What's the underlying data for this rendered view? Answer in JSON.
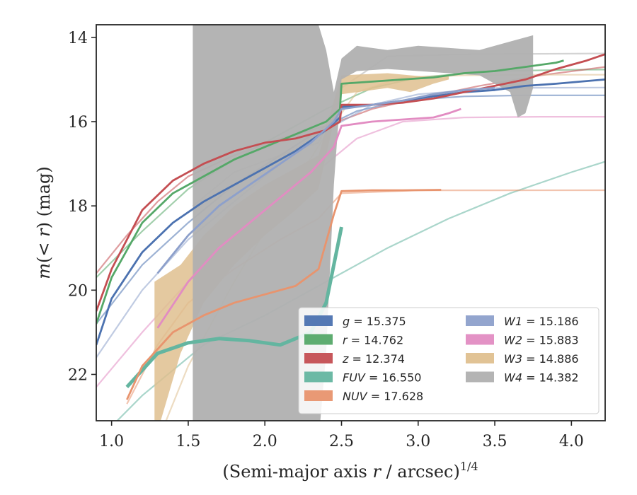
{
  "chart_data": {
    "type": "line",
    "xlabel_parts": [
      "(Semi-major axis ",
      "r",
      " / arcsec)",
      "1/4"
    ],
    "ylabel_parts": [
      "m",
      "(< ",
      "r",
      ") (mag)"
    ],
    "xlim": [
      0.9,
      4.22
    ],
    "ylim": [
      23.1,
      13.7
    ],
    "y_inverted": true,
    "xticks": [
      1.0,
      1.5,
      2.0,
      2.5,
      3.0,
      3.5,
      4.0
    ],
    "xtick_labels": [
      "1.0",
      "1.5",
      "2.0",
      "2.5",
      "3.0",
      "3.5",
      "4.0"
    ],
    "yticks": [
      14,
      16,
      18,
      20,
      22
    ],
    "ytick_labels": [
      "14",
      "16",
      "18",
      "20",
      "22"
    ],
    "grid": false,
    "legend_position": "lower-right",
    "series": [
      {
        "band": "g",
        "value": "15.375",
        "color": "#4c72b0",
        "points": [
          [
            0.9,
            21.3
          ],
          [
            1.0,
            20.2
          ],
          [
            1.2,
            19.1
          ],
          [
            1.4,
            18.4
          ],
          [
            1.6,
            17.9
          ],
          [
            1.8,
            17.5
          ],
          [
            2.0,
            17.1
          ],
          [
            2.2,
            16.7
          ],
          [
            2.4,
            16.2
          ],
          [
            2.49,
            15.9
          ],
          [
            2.5,
            15.65
          ],
          [
            2.7,
            15.6
          ],
          [
            2.9,
            15.5
          ],
          [
            3.1,
            15.4
          ],
          [
            3.3,
            15.3
          ],
          [
            3.5,
            15.25
          ],
          [
            3.7,
            15.15
          ],
          [
            3.9,
            15.1
          ],
          [
            4.22,
            15.0
          ]
        ],
        "extrapolation": [
          [
            0.9,
            20.8
          ],
          [
            1.2,
            19.4
          ],
          [
            1.5,
            18.4
          ],
          [
            1.8,
            17.5
          ],
          [
            2.1,
            16.8
          ],
          [
            2.4,
            16.1
          ],
          [
            2.6,
            15.75
          ],
          [
            2.9,
            15.5
          ],
          [
            3.3,
            15.4
          ],
          [
            3.7,
            15.375
          ],
          [
            4.22,
            15.375
          ]
        ]
      },
      {
        "band": "r",
        "value": "14.762",
        "color": "#55a868",
        "points": [
          [
            0.9,
            20.8
          ],
          [
            1.0,
            19.7
          ],
          [
            1.2,
            18.4
          ],
          [
            1.4,
            17.7
          ],
          [
            1.6,
            17.3
          ],
          [
            1.8,
            16.9
          ],
          [
            2.0,
            16.6
          ],
          [
            2.2,
            16.3
          ],
          [
            2.4,
            16.0
          ],
          [
            2.49,
            15.7
          ],
          [
            2.5,
            15.1
          ],
          [
            2.7,
            15.05
          ],
          [
            2.9,
            15.0
          ],
          [
            3.1,
            14.95
          ],
          [
            3.3,
            14.85
          ],
          [
            3.5,
            14.8
          ],
          [
            3.7,
            14.7
          ],
          [
            3.9,
            14.6
          ],
          [
            3.95,
            14.55
          ]
        ],
        "extrapolation": [
          [
            0.9,
            19.7
          ],
          [
            1.2,
            18.6
          ],
          [
            1.5,
            17.6
          ],
          [
            1.8,
            16.9
          ],
          [
            2.1,
            16.3
          ],
          [
            2.4,
            15.7
          ],
          [
            2.7,
            15.2
          ],
          [
            3.0,
            14.95
          ],
          [
            3.5,
            14.8
          ],
          [
            4.0,
            14.77
          ],
          [
            4.22,
            14.765
          ]
        ]
      },
      {
        "band": "z",
        "value": "12.374",
        "color": "#c44e52",
        "points": [
          [
            0.9,
            20.5
          ],
          [
            1.0,
            19.5
          ],
          [
            1.2,
            18.1
          ],
          [
            1.4,
            17.4
          ],
          [
            1.6,
            17.0
          ],
          [
            1.8,
            16.7
          ],
          [
            2.0,
            16.5
          ],
          [
            2.2,
            16.4
          ],
          [
            2.4,
            16.2
          ],
          [
            2.49,
            16.0
          ],
          [
            2.5,
            15.6
          ],
          [
            2.7,
            15.6
          ],
          [
            2.9,
            15.55
          ],
          [
            3.1,
            15.45
          ],
          [
            3.3,
            15.3
          ],
          [
            3.5,
            15.15
          ],
          [
            3.7,
            15.0
          ],
          [
            3.9,
            14.75
          ],
          [
            4.1,
            14.55
          ],
          [
            4.22,
            14.4
          ]
        ],
        "extrapolation": [
          [
            0.9,
            19.6
          ],
          [
            1.1,
            18.7
          ],
          [
            1.3,
            17.9
          ],
          [
            1.5,
            17.3
          ],
          [
            1.8,
            16.8
          ],
          [
            2.1,
            16.4
          ],
          [
            2.4,
            16.1
          ],
          [
            2.7,
            15.7
          ],
          [
            3.0,
            15.45
          ],
          [
            3.4,
            15.15
          ],
          [
            3.8,
            14.9
          ],
          [
            4.22,
            14.7
          ]
        ]
      },
      {
        "band": "FUV",
        "value": "16.550",
        "color": "#64b5a0",
        "points": [
          [
            1.1,
            22.3
          ],
          [
            1.3,
            21.5
          ],
          [
            1.5,
            21.25
          ],
          [
            1.7,
            21.15
          ],
          [
            1.9,
            21.2
          ],
          [
            2.1,
            21.3
          ],
          [
            2.3,
            21.0
          ],
          [
            2.4,
            20.3
          ],
          [
            2.5,
            18.5
          ]
        ],
        "extrapolation": [
          [
            0.9,
            23.6
          ],
          [
            1.2,
            22.5
          ],
          [
            1.6,
            21.3
          ],
          [
            2.0,
            20.6
          ],
          [
            2.4,
            19.8
          ],
          [
            2.8,
            19.0
          ],
          [
            3.2,
            18.3
          ],
          [
            3.6,
            17.7
          ],
          [
            4.0,
            17.2
          ],
          [
            4.22,
            16.95
          ]
        ]
      },
      {
        "band": "NUV",
        "value": "17.628",
        "color": "#e8946e",
        "points": [
          [
            1.1,
            22.6
          ],
          [
            1.2,
            21.8
          ],
          [
            1.4,
            21.0
          ],
          [
            1.6,
            20.6
          ],
          [
            1.8,
            20.3
          ],
          [
            2.0,
            20.1
          ],
          [
            2.2,
            19.9
          ],
          [
            2.35,
            19.5
          ],
          [
            2.45,
            18.2
          ],
          [
            2.5,
            17.65
          ],
          [
            2.7,
            17.63
          ],
          [
            2.9,
            17.63
          ],
          [
            3.15,
            17.62
          ]
        ],
        "extrapolation": [
          [
            1.1,
            22.7
          ],
          [
            1.3,
            21.3
          ],
          [
            1.5,
            20.3
          ],
          [
            1.8,
            19.5
          ],
          [
            2.1,
            18.8
          ],
          [
            2.35,
            18.3
          ],
          [
            2.5,
            17.7
          ],
          [
            3.0,
            17.63
          ],
          [
            3.5,
            17.63
          ],
          [
            4.22,
            17.628
          ]
        ]
      },
      {
        "band": "W1",
        "value": "15.186",
        "color": "#8da0cb",
        "points": [
          [
            1.3,
            19.6
          ],
          [
            1.5,
            18.7
          ],
          [
            1.7,
            18.0
          ],
          [
            1.9,
            17.5
          ],
          [
            2.1,
            17.0
          ],
          [
            2.3,
            16.5
          ],
          [
            2.45,
            16.0
          ],
          [
            2.5,
            15.7
          ],
          [
            2.7,
            15.6
          ],
          [
            2.9,
            15.5
          ],
          [
            3.1,
            15.35
          ],
          [
            3.3,
            15.25
          ],
          [
            3.5,
            15.2
          ]
        ],
        "extrapolation": [
          [
            0.9,
            21.6
          ],
          [
            1.2,
            20.0
          ],
          [
            1.5,
            18.8
          ],
          [
            1.8,
            17.9
          ],
          [
            2.1,
            17.0
          ],
          [
            2.4,
            16.2
          ],
          [
            2.7,
            15.6
          ],
          [
            3.0,
            15.35
          ],
          [
            3.5,
            15.2
          ],
          [
            4.22,
            15.19
          ]
        ]
      },
      {
        "band": "W2",
        "value": "15.883",
        "color": "#e28cc2",
        "points": [
          [
            1.3,
            20.9
          ],
          [
            1.5,
            19.8
          ],
          [
            1.7,
            19.0
          ],
          [
            1.9,
            18.4
          ],
          [
            2.1,
            17.8
          ],
          [
            2.3,
            17.2
          ],
          [
            2.45,
            16.6
          ],
          [
            2.5,
            16.1
          ],
          [
            2.7,
            16.0
          ],
          [
            2.9,
            15.95
          ],
          [
            3.1,
            15.9
          ],
          [
            3.2,
            15.8
          ],
          [
            3.28,
            15.7
          ]
        ],
        "extrapolation": [
          [
            0.9,
            22.3
          ],
          [
            1.2,
            21.0
          ],
          [
            1.5,
            19.8
          ],
          [
            1.8,
            18.8
          ],
          [
            2.1,
            17.9
          ],
          [
            2.4,
            17.0
          ],
          [
            2.6,
            16.4
          ],
          [
            2.9,
            16.0
          ],
          [
            3.3,
            15.9
          ],
          [
            3.8,
            15.883
          ],
          [
            4.22,
            15.883
          ]
        ]
      },
      {
        "band": "W3",
        "value": "14.886",
        "color": "#dfc08f",
        "band_upper": [
          [
            1.28,
            19.8
          ],
          [
            1.45,
            19.4
          ],
          [
            1.6,
            18.7
          ],
          [
            1.8,
            18.0
          ],
          [
            2.0,
            17.5
          ],
          [
            2.2,
            17.1
          ],
          [
            2.35,
            16.8
          ],
          [
            2.45,
            15.5
          ],
          [
            2.5,
            14.9
          ],
          [
            2.8,
            14.85
          ],
          [
            2.95,
            14.9
          ],
          [
            3.1,
            14.95
          ],
          [
            3.2,
            14.88
          ]
        ],
        "band_lower": [
          [
            1.28,
            23.6
          ],
          [
            1.45,
            21.5
          ],
          [
            1.6,
            20.3
          ],
          [
            1.8,
            19.4
          ],
          [
            2.0,
            18.7
          ],
          [
            2.2,
            18.1
          ],
          [
            2.35,
            17.6
          ],
          [
            2.45,
            16.0
          ],
          [
            2.5,
            15.35
          ],
          [
            2.8,
            15.2
          ],
          [
            2.95,
            15.3
          ],
          [
            3.1,
            15.1
          ],
          [
            3.2,
            15.0
          ]
        ],
        "extrapolation": [
          [
            1.3,
            23.6
          ],
          [
            1.5,
            21.8
          ],
          [
            1.8,
            19.8
          ],
          [
            2.1,
            18.0
          ],
          [
            2.4,
            16.3
          ],
          [
            2.6,
            15.3
          ],
          [
            2.9,
            14.95
          ],
          [
            3.3,
            14.9
          ],
          [
            3.8,
            14.886
          ],
          [
            4.22,
            14.886
          ]
        ]
      },
      {
        "band": "W4",
        "value": "14.382",
        "color": "#b0b0b0",
        "band_upper": [
          [
            1.53,
            13.7
          ],
          [
            2.35,
            13.7
          ],
          [
            2.4,
            14.3
          ],
          [
            2.45,
            15.3
          ],
          [
            2.5,
            14.5
          ],
          [
            2.6,
            14.2
          ],
          [
            2.8,
            14.3
          ],
          [
            3.0,
            14.2
          ],
          [
            3.2,
            14.25
          ],
          [
            3.4,
            14.3
          ],
          [
            3.6,
            14.1
          ],
          [
            3.75,
            13.95
          ]
        ],
        "band_lower": [
          [
            1.53,
            23.6
          ],
          [
            2.35,
            23.6
          ],
          [
            2.4,
            21.5
          ],
          [
            2.45,
            17.5
          ],
          [
            2.5,
            15.0
          ],
          [
            2.6,
            14.8
          ],
          [
            2.8,
            14.75
          ],
          [
            3.0,
            14.8
          ],
          [
            3.2,
            14.85
          ],
          [
            3.4,
            14.9
          ],
          [
            3.6,
            15.3
          ],
          [
            3.65,
            15.9
          ],
          [
            3.7,
            15.8
          ],
          [
            3.75,
            15.2
          ]
        ],
        "extrapolation": [
          [
            1.53,
            18.0
          ],
          [
            1.8,
            17.2
          ],
          [
            2.1,
            16.8
          ],
          [
            2.35,
            16.5
          ],
          [
            2.5,
            15.2
          ],
          [
            2.8,
            14.45
          ],
          [
            3.3,
            14.4
          ],
          [
            4.22,
            14.382
          ]
        ]
      }
    ]
  }
}
